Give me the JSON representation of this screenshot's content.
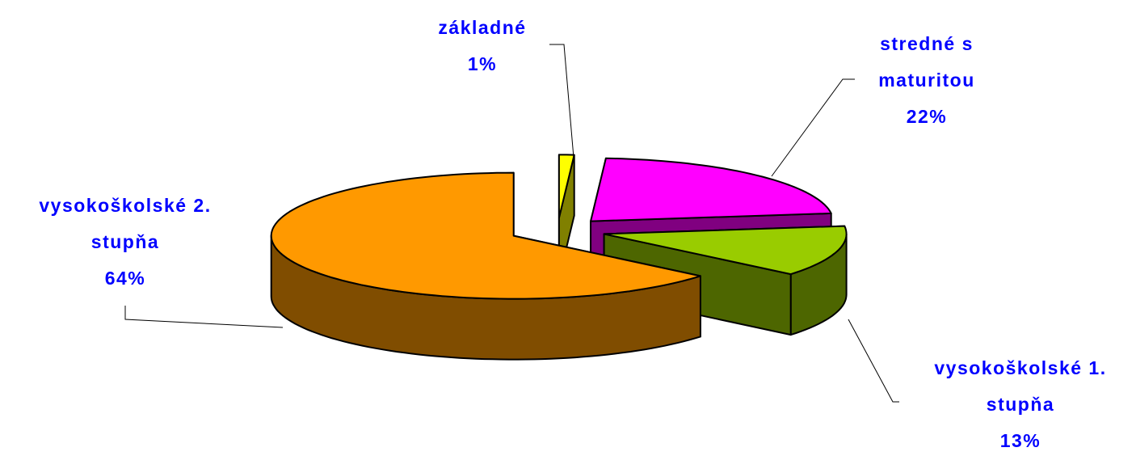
{
  "chart_data": {
    "type": "pie3d",
    "categories": [
      "základné",
      "stredné s maturitou",
      "vysokoškolské 1. stupňa",
      "vysokoškolské 2. stupňa"
    ],
    "values": [
      1,
      22,
      13,
      64
    ],
    "value_labels": [
      "1%",
      "22%",
      "13%",
      "64%"
    ],
    "colors": [
      "#ffff00",
      "#ff00ff",
      "#99cc00",
      "#ff9900"
    ],
    "side_colors": [
      "#808000",
      "#800080",
      "#4d6600",
      "#804d00"
    ]
  }
}
